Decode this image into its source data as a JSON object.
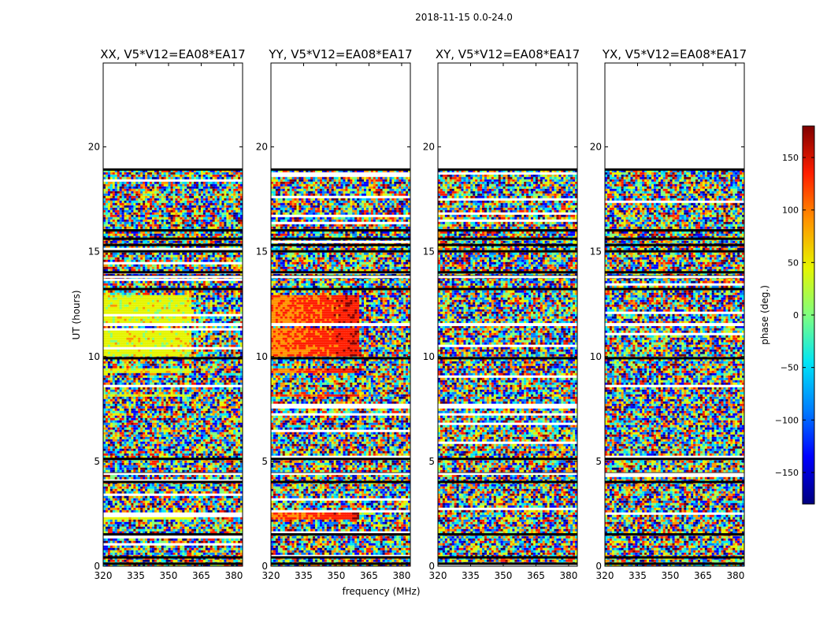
{
  "chart_data": {
    "type": "heatmap",
    "title": "2018-11-15 0.0-24.0",
    "xlabel": "frequency (MHz)",
    "ylabel": "UT (hours)",
    "xlim": [
      320,
      384
    ],
    "ylim": [
      0,
      24
    ],
    "xticks": [
      320,
      335,
      350,
      365,
      380
    ],
    "yticks": [
      0,
      5,
      10,
      15,
      20
    ],
    "panels": [
      {
        "name": "XX",
        "title": "XX, V5*V12=EA08*EA17",
        "coherent": true,
        "hue": "yellow",
        "break_freq": 360
      },
      {
        "name": "YY",
        "title": "YY, V5*V12=EA08*EA17",
        "coherent": true,
        "hue": "red",
        "break_freq": 360
      },
      {
        "name": "XY",
        "title": "XY, V5*V12=EA08*EA17",
        "coherent": false,
        "hue": "",
        "break_freq": 360
      },
      {
        "name": "YX",
        "title": "YX, V5*V12=EA08*EA17",
        "coherent": false,
        "hue": "",
        "break_freq": 360
      }
    ],
    "data_range_ut": [
      0.0,
      18.9
    ],
    "coherent_blocks_ut": [
      [
        10.1,
        11.4
      ],
      [
        9.3,
        9.5
      ],
      [
        8.1,
        8.3
      ],
      [
        2.3,
        2.6
      ],
      [
        11.6,
        13.0
      ]
    ],
    "flagged_rows_ut": [
      0.1,
      0.4,
      1.5,
      4.0,
      4.4,
      5.1,
      9.9,
      11.5,
      13.2,
      13.8,
      14.0,
      15.0,
      15.3,
      15.6,
      16.0,
      18.9
    ],
    "colorbar": {
      "label": "phase (deg.)",
      "range": [
        -180,
        180
      ],
      "ticks": [
        150,
        100,
        50,
        0,
        -50,
        -100,
        -150
      ],
      "tick_labels": [
        "150",
        "100",
        "50",
        "0",
        "−50",
        "−100",
        "−150"
      ],
      "colormap": [
        "#00007f",
        "#0000ff",
        "#007fff",
        "#00e5f5",
        "#7fff7f",
        "#e5f500",
        "#ff9400",
        "#ff1e00",
        "#7f0000"
      ]
    },
    "flag_color": "#000000",
    "gap_color": "#ffffff"
  }
}
